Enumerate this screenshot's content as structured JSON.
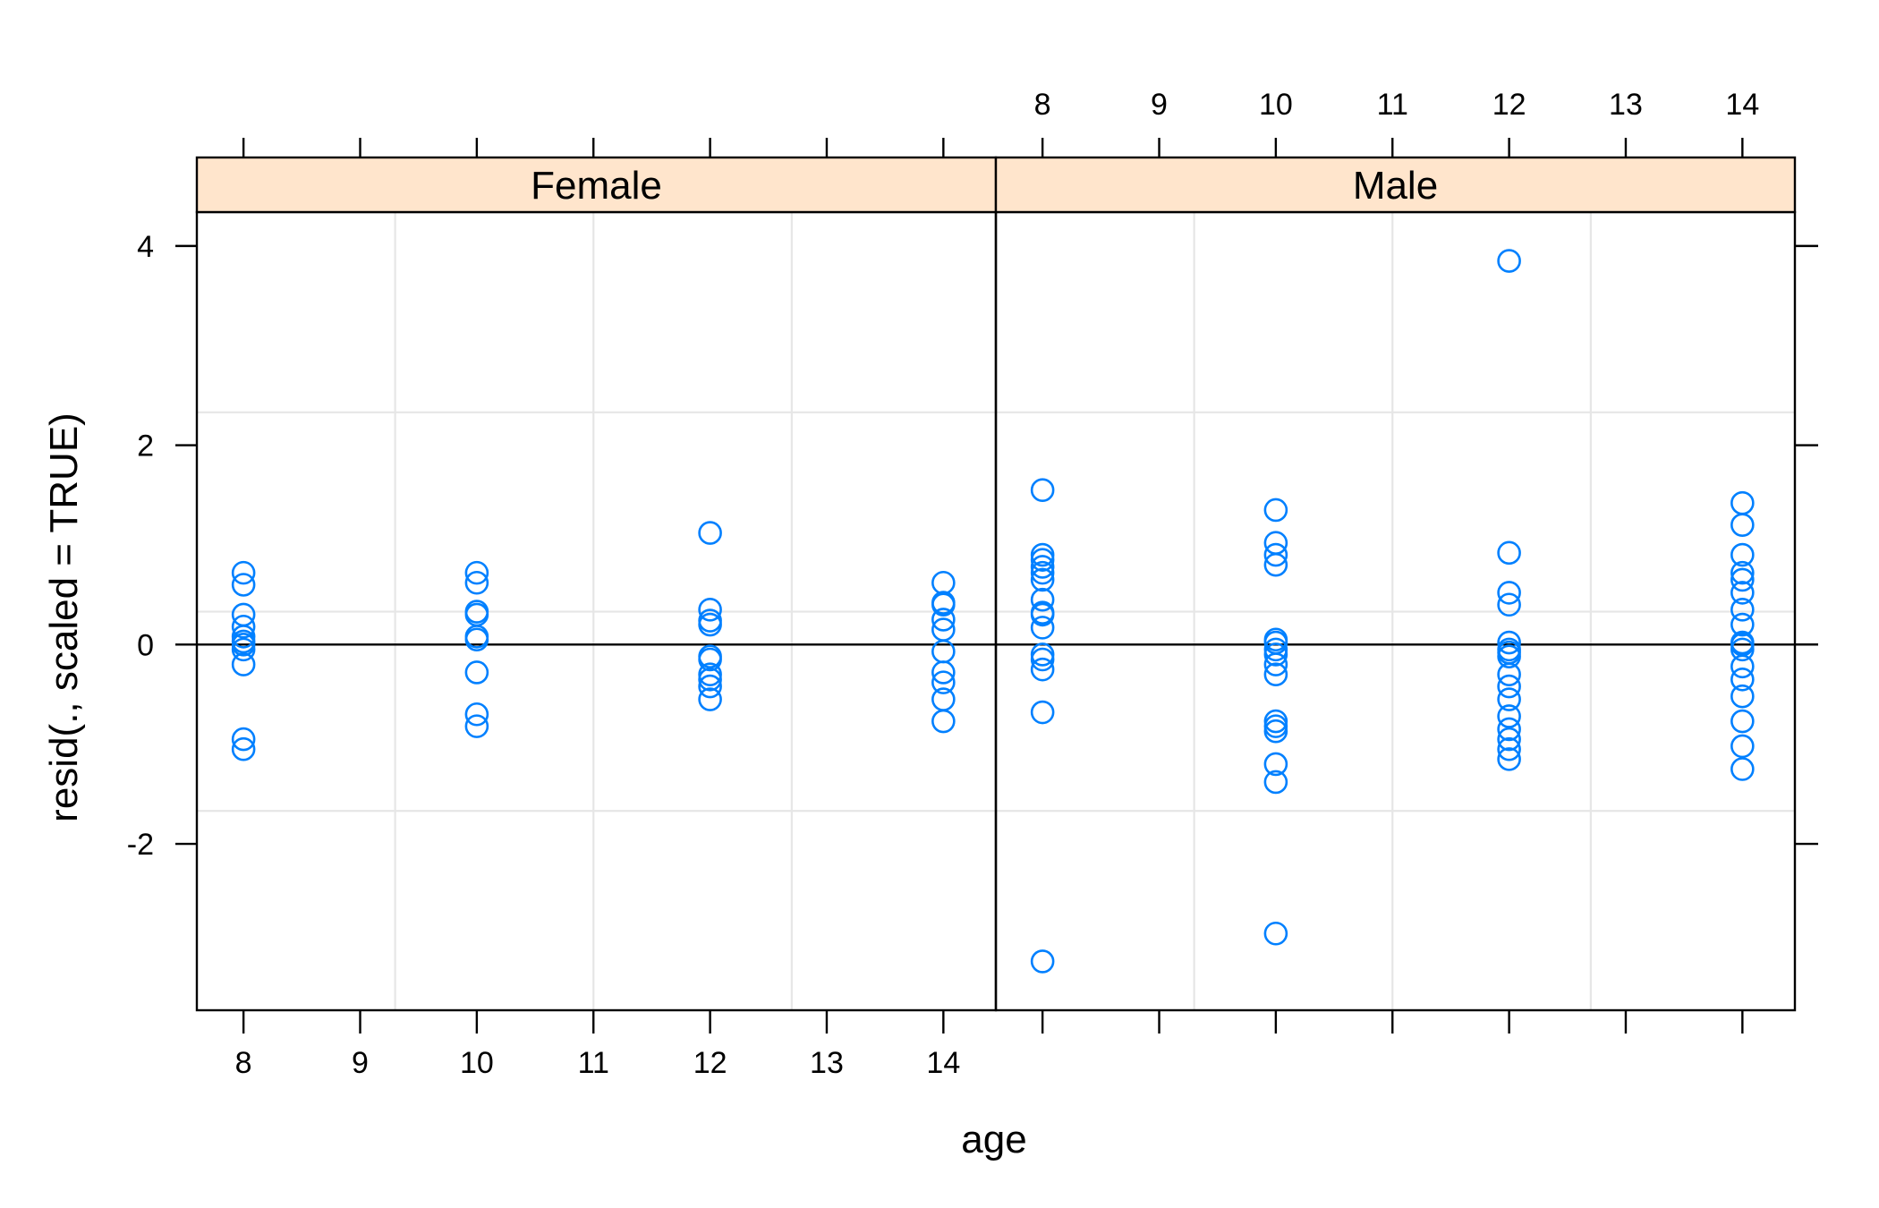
{
  "chart_data": {
    "type": "scatter",
    "xlabel": "age",
    "ylabel": "resid(., scaled = TRUE)",
    "xlim": [
      7.6,
      14.45
    ],
    "ylim": [
      -3.67,
      4.34
    ],
    "x_ticks": [
      8,
      9,
      10,
      11,
      12,
      13,
      14
    ],
    "y_ticks": [
      -2,
      0,
      2,
      4
    ],
    "y_tick_labels": [
      "-2",
      "0",
      "2",
      "4"
    ],
    "grid": true,
    "reference_line_y": 0,
    "marker": "open-circle",
    "marker_color": "#0080ff",
    "strip_color": "#ffe5cc",
    "grid_color": "#e6e6e6",
    "panels": [
      {
        "label": "Female",
        "points": [
          [
            8,
            0.72
          ],
          [
            8,
            0.6
          ],
          [
            8,
            0.3
          ],
          [
            8,
            0.18
          ],
          [
            8,
            0.08
          ],
          [
            8,
            0.03
          ],
          [
            8,
            0.0
          ],
          [
            8,
            -0.05
          ],
          [
            8,
            -0.2
          ],
          [
            8,
            -0.95
          ],
          [
            8,
            -1.05
          ],
          [
            10,
            0.72
          ],
          [
            10,
            0.62
          ],
          [
            10,
            0.33
          ],
          [
            10,
            0.3
          ],
          [
            10,
            0.08
          ],
          [
            10,
            0.05
          ],
          [
            10,
            -0.28
          ],
          [
            10,
            -0.7
          ],
          [
            10,
            -0.82
          ],
          [
            12,
            1.12
          ],
          [
            12,
            0.35
          ],
          [
            12,
            0.24
          ],
          [
            12,
            0.2
          ],
          [
            12,
            -0.12
          ],
          [
            12,
            -0.15
          ],
          [
            12,
            -0.3
          ],
          [
            12,
            -0.35
          ],
          [
            12,
            -0.42
          ],
          [
            12,
            -0.55
          ],
          [
            14,
            0.62
          ],
          [
            14,
            0.42
          ],
          [
            14,
            0.4
          ],
          [
            14,
            0.25
          ],
          [
            14,
            0.15
          ],
          [
            14,
            -0.07
          ],
          [
            14,
            -0.28
          ],
          [
            14,
            -0.38
          ],
          [
            14,
            -0.55
          ],
          [
            14,
            -0.77
          ]
        ]
      },
      {
        "label": "Male",
        "points": [
          [
            8,
            1.55
          ],
          [
            8,
            0.9
          ],
          [
            8,
            0.85
          ],
          [
            8,
            0.78
          ],
          [
            8,
            0.72
          ],
          [
            8,
            0.65
          ],
          [
            8,
            0.45
          ],
          [
            8,
            0.32
          ],
          [
            8,
            0.3
          ],
          [
            8,
            0.17
          ],
          [
            8,
            -0.1
          ],
          [
            8,
            -0.15
          ],
          [
            8,
            -0.25
          ],
          [
            8,
            -0.68
          ],
          [
            8,
            -3.18
          ],
          [
            10,
            1.35
          ],
          [
            10,
            1.02
          ],
          [
            10,
            0.9
          ],
          [
            10,
            0.8
          ],
          [
            10,
            0.05
          ],
          [
            10,
            0.02
          ],
          [
            10,
            -0.05
          ],
          [
            10,
            -0.1
          ],
          [
            10,
            -0.2
          ],
          [
            10,
            -0.3
          ],
          [
            10,
            -0.77
          ],
          [
            10,
            -0.82
          ],
          [
            10,
            -0.87
          ],
          [
            10,
            -1.2
          ],
          [
            10,
            -1.38
          ],
          [
            10,
            -2.9
          ],
          [
            12,
            3.85
          ],
          [
            12,
            0.92
          ],
          [
            12,
            0.52
          ],
          [
            12,
            0.4
          ],
          [
            12,
            0.02
          ],
          [
            12,
            -0.05
          ],
          [
            12,
            -0.08
          ],
          [
            12,
            -0.12
          ],
          [
            12,
            -0.3
          ],
          [
            12,
            -0.42
          ],
          [
            12,
            -0.55
          ],
          [
            12,
            -0.72
          ],
          [
            12,
            -0.85
          ],
          [
            12,
            -0.95
          ],
          [
            12,
            -1.05
          ],
          [
            12,
            -1.15
          ],
          [
            14,
            1.42
          ],
          [
            14,
            1.2
          ],
          [
            14,
            0.9
          ],
          [
            14,
            0.72
          ],
          [
            14,
            0.65
          ],
          [
            14,
            0.52
          ],
          [
            14,
            0.35
          ],
          [
            14,
            0.2
          ],
          [
            14,
            0.02
          ],
          [
            14,
            0.0
          ],
          [
            14,
            -0.05
          ],
          [
            14,
            -0.22
          ],
          [
            14,
            -0.35
          ],
          [
            14,
            -0.52
          ],
          [
            14,
            -0.77
          ],
          [
            14,
            -1.02
          ],
          [
            14,
            -1.25
          ]
        ]
      }
    ]
  }
}
